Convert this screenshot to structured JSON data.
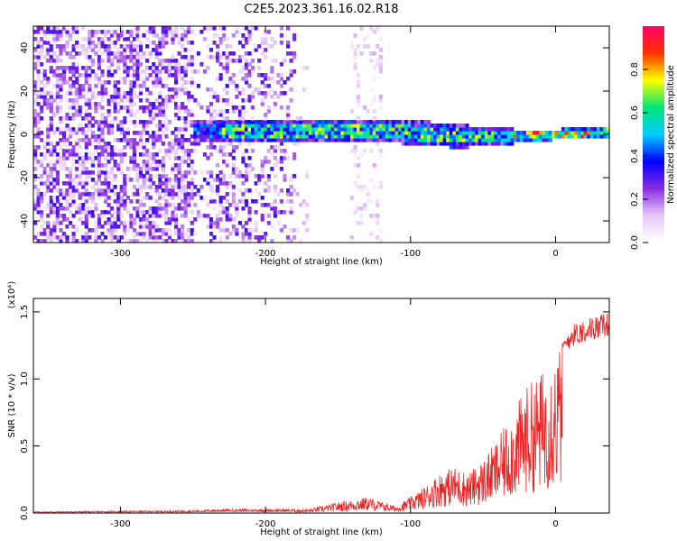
{
  "title": "C2E5.2023.361.16.02.R18",
  "chart_data": [
    {
      "type": "heatmap",
      "xlabel": "Height of straight line (km)",
      "ylabel": "Frequency (Hz)",
      "xlim": [
        -360,
        37
      ],
      "ylim": [
        -50,
        50
      ],
      "xticks": [
        -300,
        -200,
        -100,
        0
      ],
      "yticks": [
        -40,
        -20,
        0,
        20,
        40
      ],
      "colorbar": {
        "label": "Normalized spectral amplitude",
        "range": [
          0.0,
          1.0
        ],
        "ticks": [
          0.0,
          0.2,
          0.4,
          0.6,
          0.8
        ],
        "tick_labels": [
          "0.0",
          "0.2",
          "0.4",
          "0.6",
          "0.8"
        ],
        "colormap": [
          "#ffffff",
          "#e6c8f8",
          "#8a2be2",
          "#0000ff",
          "#00cfff",
          "#00e676",
          "#ffff00",
          "#ff3300",
          "#ff0066"
        ]
      },
      "features": [
        {
          "description": "scattered low-amplitude noise",
          "x_range": [
            -360,
            -180
          ],
          "freq_range": [
            -50,
            50
          ],
          "amplitude": [
            0.05,
            0.3
          ]
        },
        {
          "description": "vertical noise stripe",
          "x_range": [
            -140,
            -120
          ],
          "freq_range": [
            -50,
            50
          ],
          "amplitude": [
            0.02,
            0.15
          ]
        },
        {
          "description": "narrow band near 0 Hz, widening to the left",
          "x_range": [
            -250,
            37
          ],
          "freq_center": 0,
          "amplitude": [
            0.3,
            0.95
          ]
        }
      ],
      "grid": false
    },
    {
      "type": "line",
      "xlabel": "Height of straight line (km)",
      "ylabel": "SNR (10 * v/v)",
      "y_scale_note": "(x10⁴)",
      "xlim": [
        -360,
        37
      ],
      "ylim": [
        0,
        1.6
      ],
      "xticks": [
        -300,
        -200,
        -100,
        0
      ],
      "yticks": [
        0.0,
        0.5,
        1.0,
        1.5
      ],
      "ytick_labels": [
        "0.0",
        "0.5",
        "1.0",
        "1.5"
      ],
      "series": [
        {
          "color": "#ee2222",
          "envelope": {
            "x": [
              -360,
              -250,
              -230,
              -170,
              -150,
              -130,
              -110,
              -100,
              -90,
              -80,
              -70,
              -60,
              -50,
              -40,
              -30,
              -20,
              -10,
              0,
              10,
              20,
              37
            ],
            "y": [
              0.01,
              0.02,
              0.03,
              0.03,
              0.08,
              0.12,
              0.05,
              0.12,
              0.2,
              0.3,
              0.35,
              0.3,
              0.4,
              0.55,
              0.75,
              0.95,
              1.05,
              1.2,
              1.4,
              1.45,
              1.5
            ]
          }
        }
      ],
      "grid": false
    }
  ]
}
